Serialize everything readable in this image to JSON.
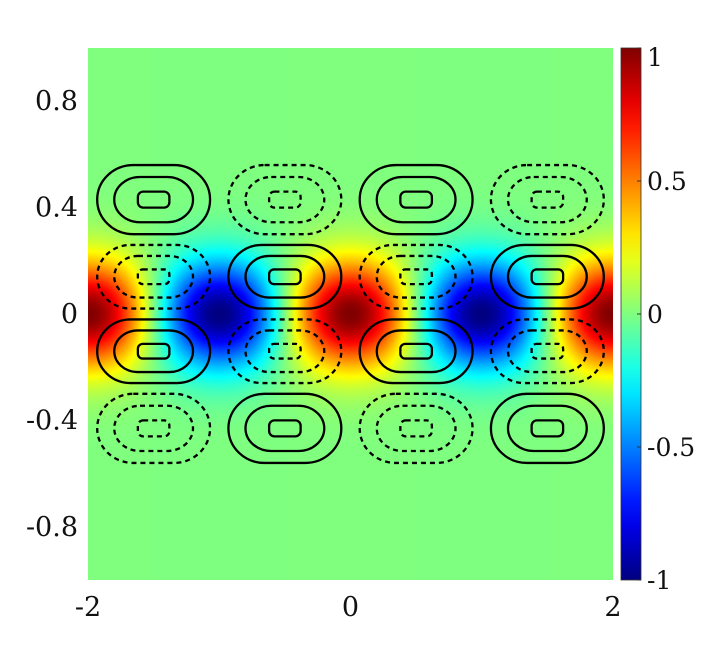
{
  "chart_data": {
    "type": "heatmap",
    "title": "",
    "xlabel": "",
    "ylabel": "",
    "xlim": [
      -2,
      2
    ],
    "ylim": [
      -1,
      1
    ],
    "x_ticks": [
      {
        "value": -2,
        "label": "-2"
      },
      {
        "value": 0,
        "label": "0"
      },
      {
        "value": 2,
        "label": "2"
      }
    ],
    "y_ticks": [
      {
        "value": 0.8,
        "label": "0.8"
      },
      {
        "value": 0.4,
        "label": "0.4"
      },
      {
        "value": 0,
        "label": "0"
      },
      {
        "value": -0.4,
        "label": "-0.4"
      },
      {
        "value": -0.8,
        "label": "-0.8"
      }
    ],
    "colormap": "jet",
    "clim": [
      -1,
      1
    ],
    "colorbar": {
      "location": "right",
      "ticks": [
        {
          "value": 1,
          "label": "1"
        },
        {
          "value": 0.5,
          "label": "0.5"
        },
        {
          "value": 0,
          "label": "0"
        },
        {
          "value": -0.5,
          "label": "-0.5"
        },
        {
          "value": -1,
          "label": "-1"
        }
      ]
    },
    "field": {
      "description_of_values": "filled colour field, max |value| about 1 near y=0",
      "function": "cos(pi*x) * exp(-(y/0.2)^2) style band centred on y=0",
      "x_period": 2,
      "y_decay": 0.2
    },
    "contours": {
      "positive_style": "solid",
      "negative_style": "dashed",
      "color": "#000000",
      "cells": [
        {
          "x": -1.5,
          "y": 0.43,
          "sign": "positive"
        },
        {
          "x": -0.5,
          "y": 0.43,
          "sign": "negative"
        },
        {
          "x": 0.5,
          "y": 0.43,
          "sign": "positive"
        },
        {
          "x": 1.5,
          "y": 0.43,
          "sign": "negative"
        },
        {
          "x": -1.5,
          "y": 0.14,
          "sign": "negative"
        },
        {
          "x": -0.5,
          "y": 0.14,
          "sign": "positive"
        },
        {
          "x": 0.5,
          "y": 0.14,
          "sign": "negative"
        },
        {
          "x": 1.5,
          "y": 0.14,
          "sign": "positive"
        },
        {
          "x": -1.5,
          "y": -0.14,
          "sign": "positive"
        },
        {
          "x": -0.5,
          "y": -0.14,
          "sign": "negative"
        },
        {
          "x": 0.5,
          "y": -0.14,
          "sign": "positive"
        },
        {
          "x": 1.5,
          "y": -0.14,
          "sign": "negative"
        },
        {
          "x": -1.5,
          "y": -0.43,
          "sign": "negative"
        },
        {
          "x": -0.5,
          "y": -0.43,
          "sign": "positive"
        },
        {
          "x": 0.5,
          "y": -0.43,
          "sign": "negative"
        },
        {
          "x": 1.5,
          "y": -0.43,
          "sign": "positive"
        }
      ]
    }
  }
}
